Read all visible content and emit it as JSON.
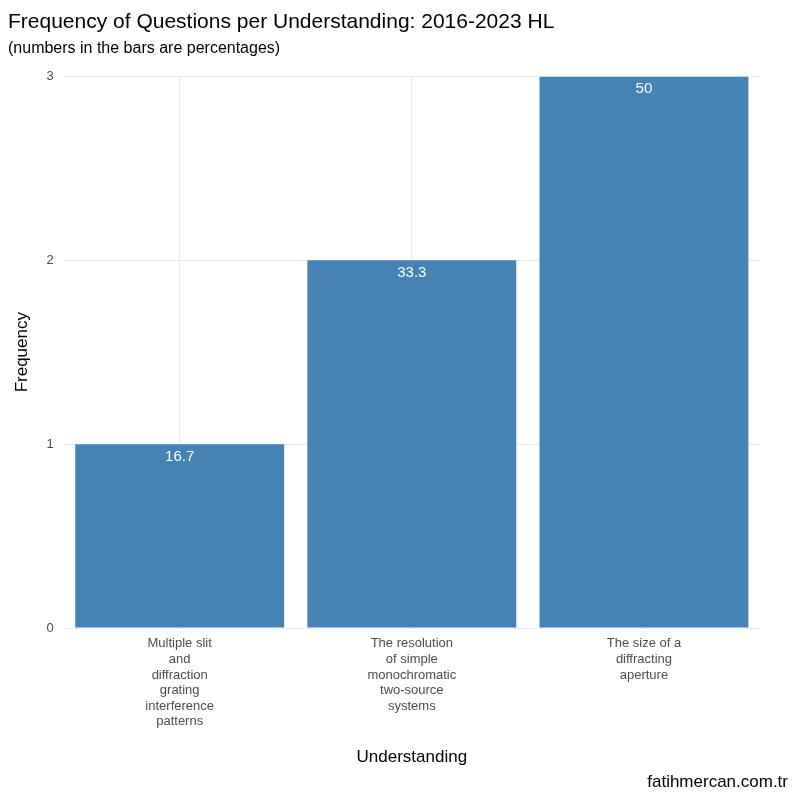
{
  "chart_data": {
    "type": "bar",
    "title": "Frequency of Questions per Understanding: 2016-2023 HL",
    "subtitle": "(numbers in the bars are percentages)",
    "x_label": "Understanding",
    "y_label": "Frequency",
    "caption": "fatihmercan.com.tr",
    "categories": [
      "Multiple slit and diffraction grating interference patterns",
      "The resolution of simple monochromatic two-source systems",
      "The size of a diffracting aperture"
    ],
    "values": [
      1,
      2,
      3
    ],
    "percentages": [
      16.7,
      33.3,
      50
    ],
    "color": "#4682b4",
    "ylim": [
      0,
      3
    ],
    "yticks": [
      0,
      1,
      2,
      3
    ],
    "grid": true
  }
}
